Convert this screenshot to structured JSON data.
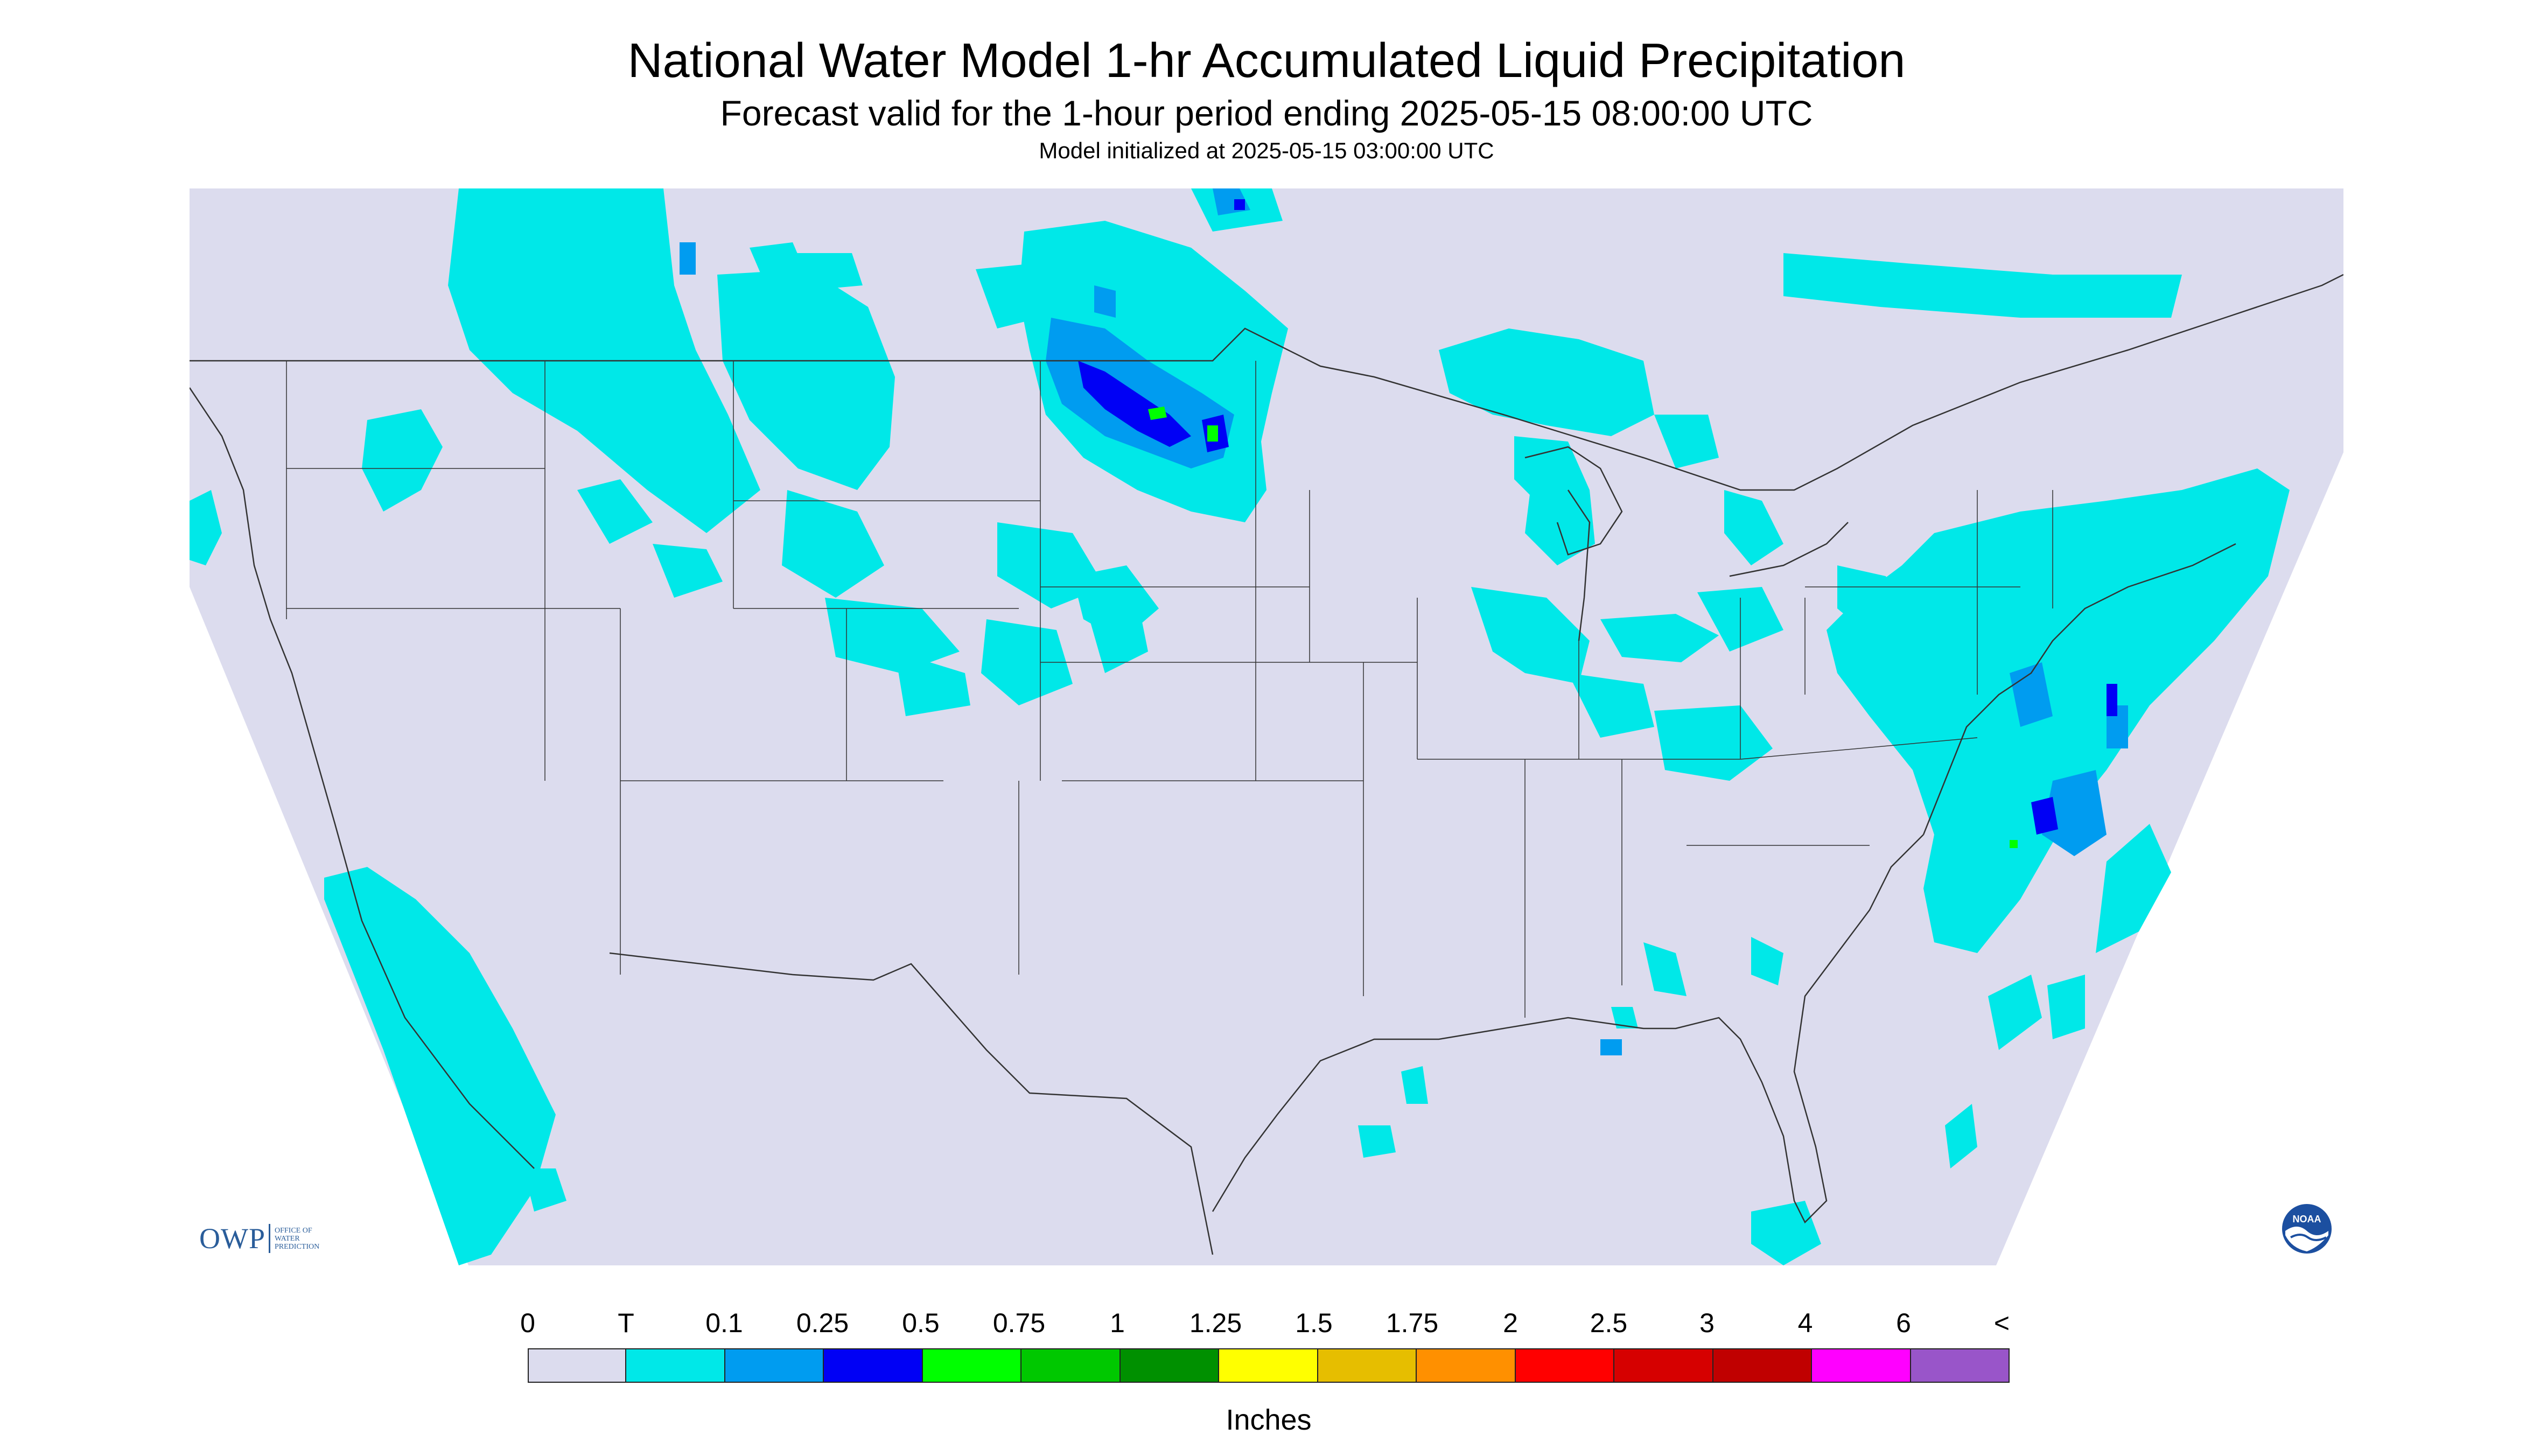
{
  "title": "National Water Model 1-hr Accumulated Liquid Precipitation",
  "subtitle": "Forecast valid for the 1-hour period ending 2025-05-15 08:00:00 UTC",
  "init_line": "Model initialized at 2025-05-15 03:00:00 UTC",
  "map": {
    "region": "Continental United States",
    "background_color": "#dcdcee",
    "outside_domain_color": "#ffffff",
    "precip_areas": [
      {
        "name": "Pacific Northwest / Washington",
        "level": "T"
      },
      {
        "name": "Northern Rockies / Montana",
        "level": "T"
      },
      {
        "name": "Dakotas band",
        "level": "0.25"
      },
      {
        "name": "South Dakota / Minnesota border core",
        "level": "0.5"
      },
      {
        "name": "Upper Midwest / Great Lakes",
        "level": "T"
      },
      {
        "name": "Ohio Valley",
        "level": "T"
      },
      {
        "name": "Mid-Atlantic / Northeast",
        "level": "T"
      },
      {
        "name": "Atlantic offshore near North Carolina",
        "level": "0.25"
      },
      {
        "name": "Pacific offshore near California",
        "level": "T"
      },
      {
        "name": "Gulf of Mexico south of Louisiana",
        "level": "T"
      },
      {
        "name": "Georgia / Florida",
        "level": "T"
      }
    ]
  },
  "logos": {
    "owp": {
      "mark": "OWP",
      "text_lines": [
        "OFFICE OF",
        "WATER",
        "PREDICTION"
      ],
      "color": "#2a5d9a"
    },
    "noaa": {
      "text": "NOAA",
      "color": "#1c4fa0"
    }
  },
  "legend": {
    "units_label": "Inches",
    "tick_labels": [
      "0",
      "T",
      "0.1",
      "0.25",
      "0.5",
      "0.75",
      "1",
      "1.25",
      "1.5",
      "1.75",
      "2",
      "2.5",
      "3",
      "4",
      "6",
      "<"
    ],
    "colors": [
      "#dcdcee",
      "#00e8e8",
      "#009cf0",
      "#0000f5",
      "#00ff00",
      "#00c800",
      "#009000",
      "#ffff00",
      "#e6be00",
      "#ff9000",
      "#ff0000",
      "#d60000",
      "#c00000",
      "#ff00ff",
      "#9955c9"
    ]
  }
}
